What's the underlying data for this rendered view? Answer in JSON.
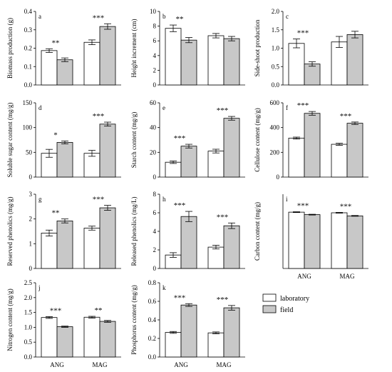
{
  "figure": {
    "legend": {
      "placement": "below panel i",
      "entries": [
        {
          "label": "laboratory",
          "color": "#ffffff"
        },
        {
          "label": "field",
          "color": "#c8c8c8"
        }
      ]
    }
  },
  "chart_data": [
    {
      "type": "bar",
      "panel": "a",
      "categories": [
        "ANG",
        "MAG"
      ],
      "series": [
        {
          "name": "laboratory",
          "values": [
            0.187,
            0.232
          ],
          "errors": [
            0.01,
            0.013
          ]
        },
        {
          "name": "field",
          "values": [
            0.137,
            0.318
          ],
          "errors": [
            0.01,
            0.015
          ]
        }
      ],
      "significance": [
        "**",
        "***"
      ],
      "ylabel": "Biomass production (g)",
      "ylim": [
        0,
        0.4
      ],
      "yticks": [
        "0.0",
        "0.1",
        "0.2",
        "0.3",
        "0.4"
      ],
      "show_xlabels": false
    },
    {
      "type": "bar",
      "panel": "b",
      "categories": [
        "ANG",
        "MAG"
      ],
      "series": [
        {
          "name": "laboratory",
          "values": [
            7.7,
            6.7
          ],
          "errors": [
            0.45,
            0.3
          ]
        },
        {
          "name": "field",
          "values": [
            6.1,
            6.3
          ],
          "errors": [
            0.35,
            0.3
          ]
        }
      ],
      "significance": [
        "**",
        ""
      ],
      "ylabel": "Height increment (cm)",
      "ylim": [
        0,
        10
      ],
      "yticks": [
        "0",
        "2",
        "4",
        "6",
        "8",
        "10"
      ],
      "show_xlabels": false
    },
    {
      "type": "bar",
      "panel": "c",
      "categories": [
        "ANG",
        "MAG"
      ],
      "series": [
        {
          "name": "laboratory",
          "values": [
            1.13,
            1.17
          ],
          "errors": [
            0.12,
            0.15
          ]
        },
        {
          "name": "field",
          "values": [
            0.57,
            1.37
          ],
          "errors": [
            0.06,
            0.09
          ]
        }
      ],
      "significance": [
        "***",
        ""
      ],
      "ylabel": "Side-shoot production",
      "ylim": [
        0,
        2.0
      ],
      "yticks": [
        "0.0",
        "0.5",
        "1.0",
        "1.5",
        "2.0"
      ],
      "show_xlabels": false
    },
    {
      "type": "bar",
      "panel": "d",
      "categories": [
        "ANG",
        "MAG"
      ],
      "series": [
        {
          "name": "laboratory",
          "values": [
            48,
            48
          ],
          "errors": [
            8,
            6
          ]
        },
        {
          "name": "field",
          "values": [
            70,
            107
          ],
          "errors": [
            3,
            4
          ]
        }
      ],
      "significance": [
        "*",
        "***"
      ],
      "ylabel": "Soluble sugar content (mg/g)",
      "ylim": [
        0,
        150
      ],
      "yticks": [
        "0",
        "50",
        "100",
        "150"
      ],
      "show_xlabels": false
    },
    {
      "type": "bar",
      "panel": "e",
      "categories": [
        "ANG",
        "MAG"
      ],
      "series": [
        {
          "name": "laboratory",
          "values": [
            12,
            21
          ],
          "errors": [
            1,
            1.5
          ]
        },
        {
          "name": "field",
          "values": [
            25,
            47.5
          ],
          "errors": [
            1.5,
            1.5
          ]
        }
      ],
      "significance": [
        "***",
        "***"
      ],
      "ylabel": "Starch content (mg/g)",
      "ylim": [
        0,
        60
      ],
      "yticks": [
        "0",
        "20",
        "40",
        "60"
      ],
      "show_xlabels": false
    },
    {
      "type": "bar",
      "panel": "f",
      "categories": [
        "ANG",
        "MAG"
      ],
      "series": [
        {
          "name": "laboratory",
          "values": [
            315,
            265
          ],
          "errors": [
            8,
            8
          ]
        },
        {
          "name": "field",
          "values": [
            515,
            435
          ],
          "errors": [
            15,
            10
          ]
        }
      ],
      "significance": [
        "***",
        "***"
      ],
      "ylabel": "Cellulose content (mg/g)",
      "ylim": [
        0,
        600
      ],
      "yticks": [
        "0",
        "200",
        "400",
        "600"
      ],
      "show_xlabels": false
    },
    {
      "type": "bar",
      "panel": "g",
      "categories": [
        "ANG",
        "MAG"
      ],
      "series": [
        {
          "name": "laboratory",
          "values": [
            1.43,
            1.63
          ],
          "errors": [
            0.12,
            0.08
          ]
        },
        {
          "name": "field",
          "values": [
            1.92,
            2.45
          ],
          "errors": [
            0.08,
            0.1
          ]
        }
      ],
      "significance": [
        "**",
        "***"
      ],
      "ylabel": "Reserved phenolics (mg/g)",
      "ylim": [
        0,
        3
      ],
      "yticks": [
        "0",
        "1",
        "2",
        "3"
      ],
      "show_xlabels": false
    },
    {
      "type": "bar",
      "panel": "h",
      "categories": [
        "ANG",
        "MAG"
      ],
      "series": [
        {
          "name": "laboratory",
          "values": [
            1.45,
            2.3
          ],
          "errors": [
            0.25,
            0.2
          ]
        },
        {
          "name": "field",
          "values": [
            5.6,
            4.6
          ],
          "errors": [
            0.55,
            0.3
          ]
        }
      ],
      "significance": [
        "***",
        "***"
      ],
      "ylabel": "Released phenolics (mg/L)",
      "ylim": [
        0,
        8
      ],
      "yticks": [
        "0",
        "2",
        "4",
        "6",
        "8"
      ],
      "show_xlabels": false
    },
    {
      "type": "bar",
      "panel": "i",
      "categories": [
        "ANG",
        "MAG"
      ],
      "series": [
        {
          "name": "laboratory",
          "values": [
            45.5,
            45
          ],
          "errors": [
            0.3,
            0.3
          ]
        },
        {
          "name": "field",
          "values": [
            43.5,
            42.5
          ],
          "errors": [
            0.3,
            0.3
          ]
        }
      ],
      "significance": [
        "***",
        "***"
      ],
      "ylabel": "Carbon content (mg/g)",
      "ylim": [
        0,
        60
      ],
      "yticks": [],
      "show_xlabels": true
    },
    {
      "type": "bar",
      "panel": "j",
      "categories": [
        "ANG",
        "MAG"
      ],
      "series": [
        {
          "name": "laboratory",
          "values": [
            1.33,
            1.34
          ],
          "errors": [
            0.03,
            0.03
          ]
        },
        {
          "name": "field",
          "values": [
            1.02,
            1.2
          ],
          "errors": [
            0.02,
            0.03
          ]
        }
      ],
      "significance": [
        "***",
        "**"
      ],
      "ylabel": "Nitrogen content (mg/g)",
      "ylim": [
        0,
        2.5
      ],
      "yticks": [
        "0.0",
        "0.5",
        "1.0",
        "1.5",
        "2.0",
        "2.5"
      ],
      "show_xlabels": true
    },
    {
      "type": "bar",
      "panel": "k",
      "categories": [
        "ANG",
        "MAG"
      ],
      "series": [
        {
          "name": "laboratory",
          "values": [
            0.265,
            0.26
          ],
          "errors": [
            0.01,
            0.01
          ]
        },
        {
          "name": "field",
          "values": [
            0.56,
            0.53
          ],
          "errors": [
            0.015,
            0.025
          ]
        }
      ],
      "significance": [
        "***",
        "***"
      ],
      "ylabel": "Phosphorus content (mg/g)",
      "ylim": [
        0,
        0.8
      ],
      "yticks": [
        "0.0",
        "0.2",
        "0.4",
        "0.6",
        "0.8"
      ],
      "show_xlabels": true
    }
  ]
}
